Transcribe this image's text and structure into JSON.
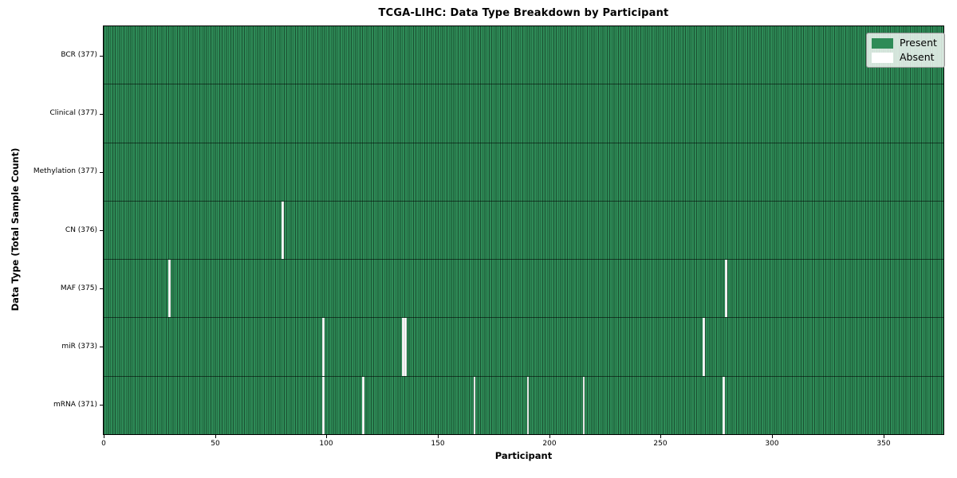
{
  "chart_data": {
    "type": "heatmap",
    "title": "TCGA-LIHC: Data Type Breakdown by Participant",
    "xlabel": "Participant",
    "ylabel": "Data Type (Total Sample Count)",
    "x_ticks": [
      0,
      50,
      100,
      150,
      200,
      250,
      300,
      350
    ],
    "xlim": [
      0,
      377
    ],
    "n_participants": 377,
    "grid": false,
    "legend_position": "upper right",
    "legend": [
      {
        "label": "Present",
        "color": "#2e8b57"
      },
      {
        "label": "Absent",
        "color": "#ffffff"
      }
    ],
    "rows": [
      {
        "label": "BCR (377)",
        "data_type": "BCR",
        "present_count": 377,
        "absent_participants": []
      },
      {
        "label": "Clinical (377)",
        "data_type": "Clinical",
        "present_count": 377,
        "absent_participants": []
      },
      {
        "label": "Methylation (377)",
        "data_type": "Methylation",
        "present_count": 377,
        "absent_participants": []
      },
      {
        "label": "CN (376)",
        "data_type": "CN",
        "present_count": 376,
        "absent_participants": [
          80
        ]
      },
      {
        "label": "MAF (375)",
        "data_type": "MAF",
        "present_count": 375,
        "absent_participants": [
          29,
          279
        ]
      },
      {
        "label": "miR (373)",
        "data_type": "miR",
        "present_count": 373,
        "absent_participants": [
          98,
          134,
          135,
          269
        ]
      },
      {
        "label": "mRNA (371)",
        "data_type": "mRNA",
        "present_count": 371,
        "absent_participants": [
          98,
          116,
          166,
          190,
          215,
          278
        ]
      }
    ],
    "colors": {
      "present": "#2e8b57",
      "absent": "#ffffff",
      "cell_edge": "#0b301d",
      "axis": "#000000"
    }
  }
}
